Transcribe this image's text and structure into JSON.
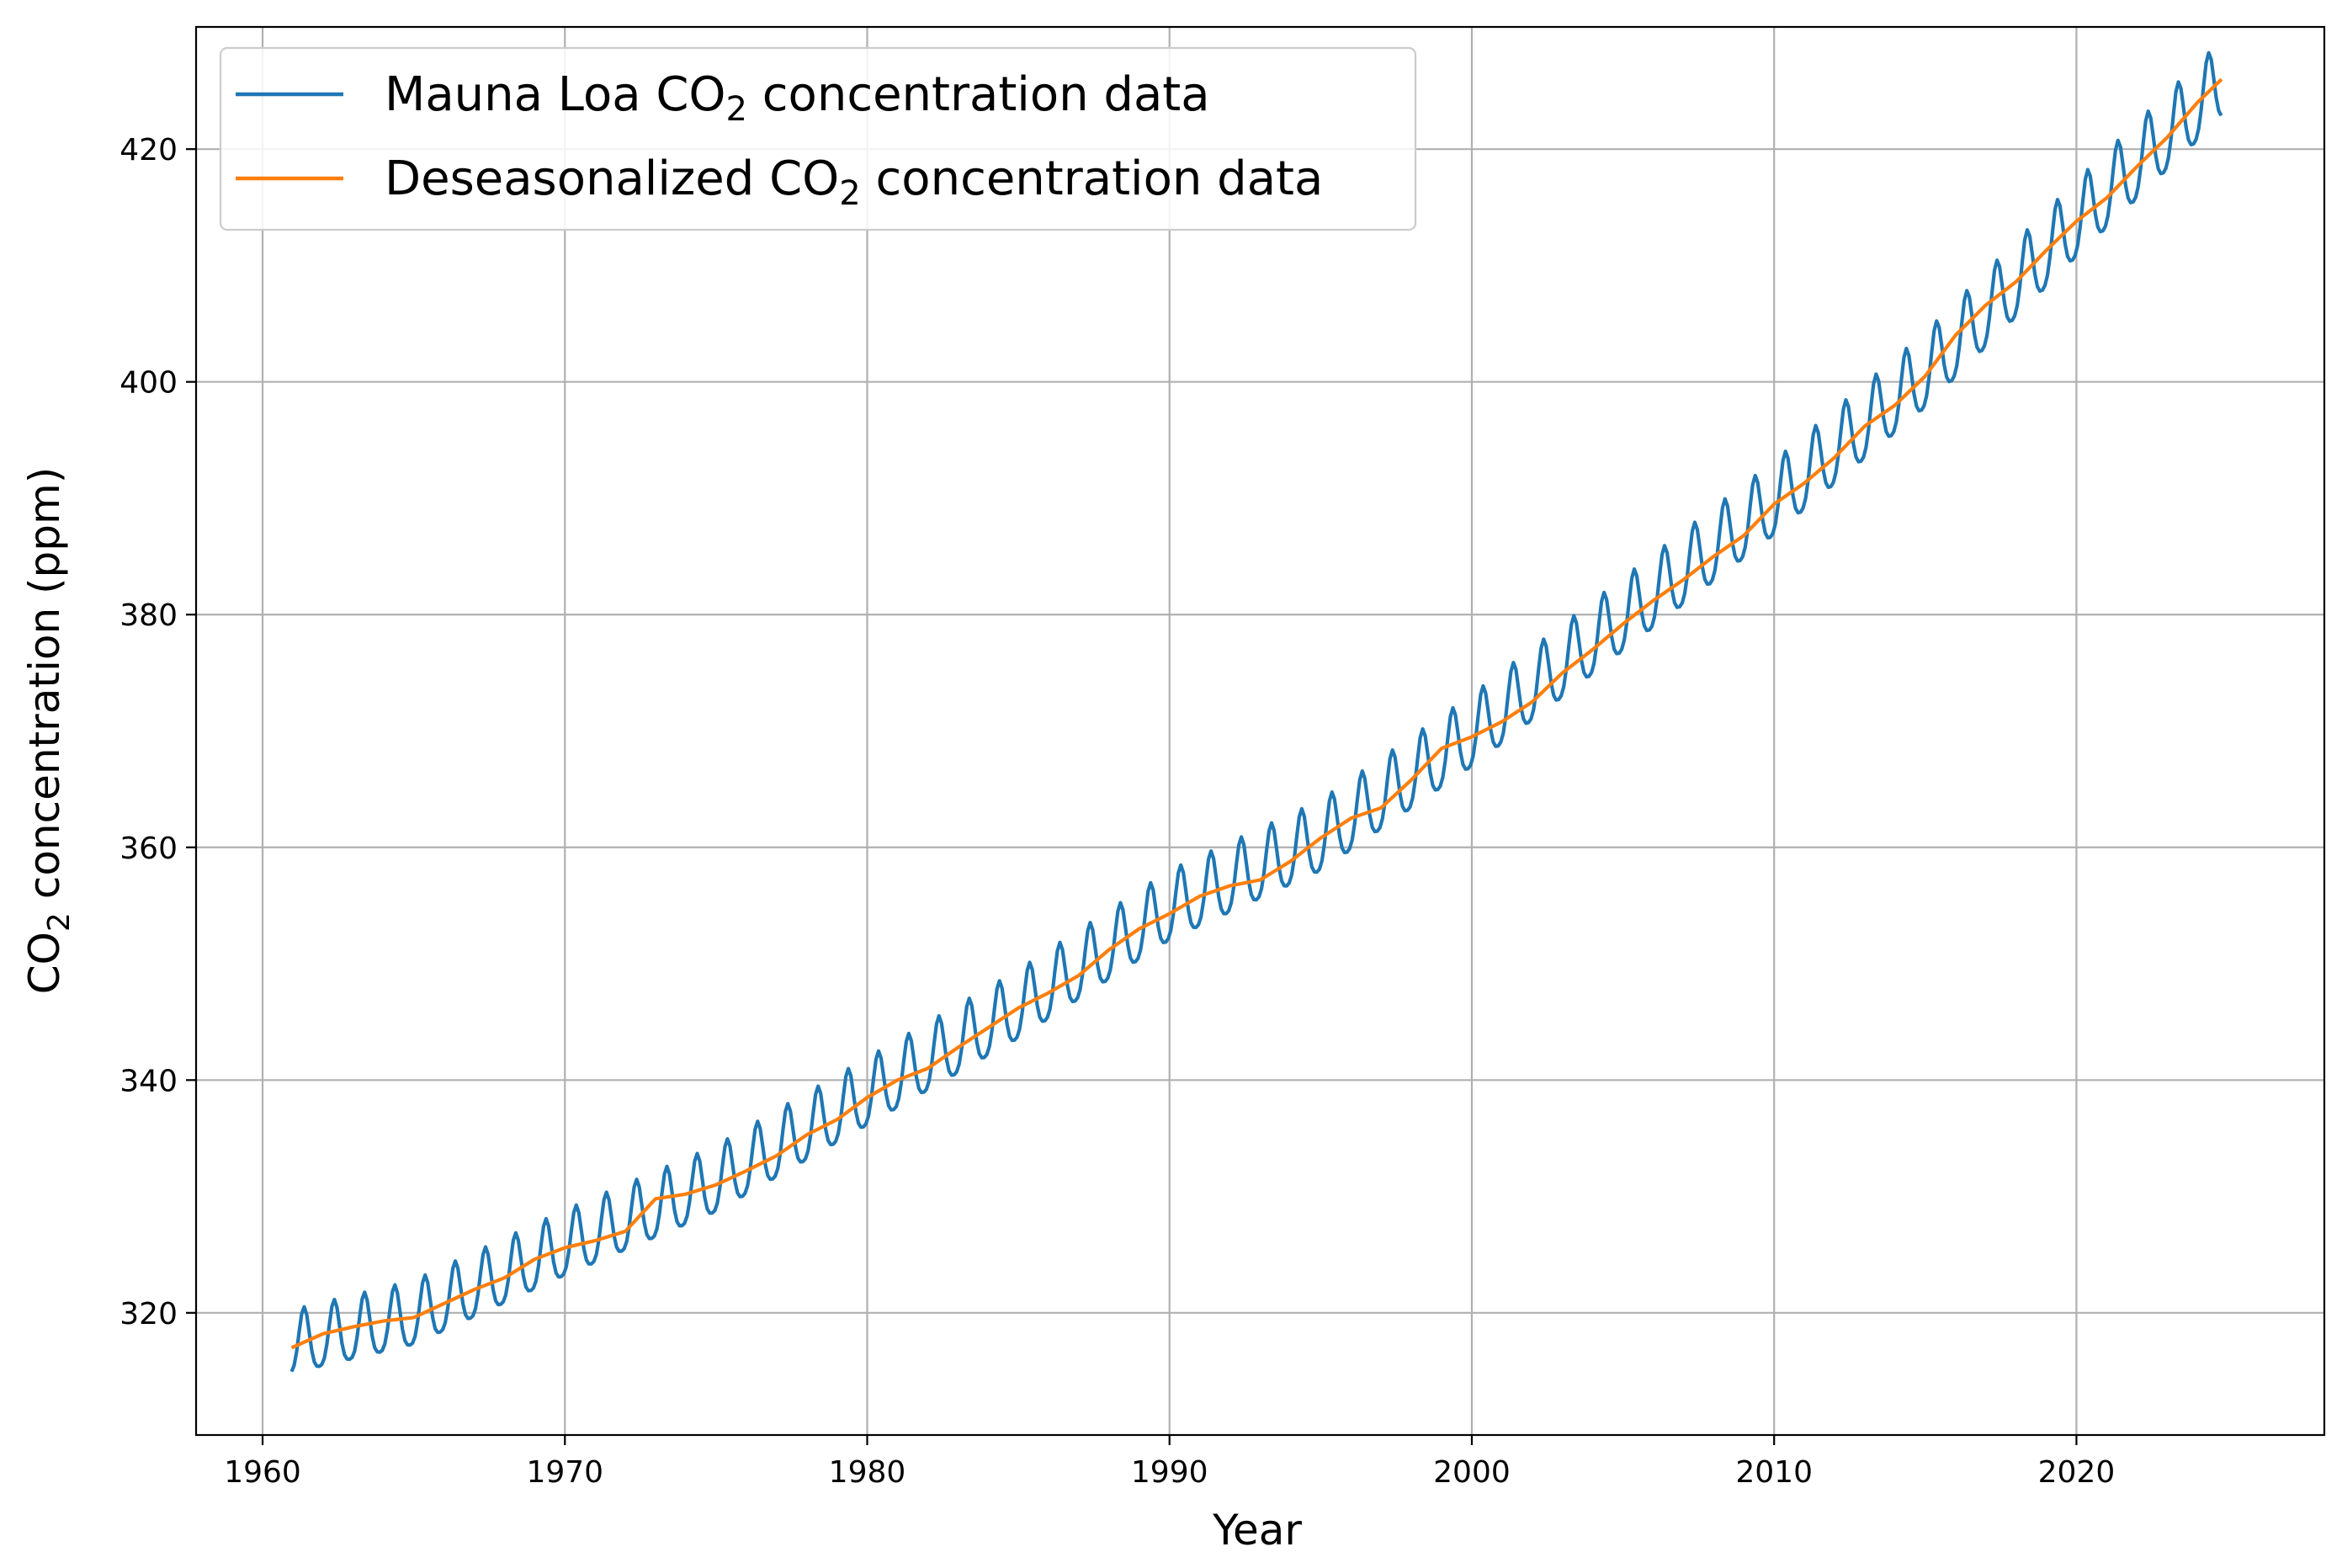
{
  "chart_data": {
    "type": "line",
    "xlabel": "Year",
    "ylabel_main": "CO",
    "ylabel_sub": "2",
    "ylabel_rest": " concentration (ppm)",
    "xlim": [
      1957.8,
      2028.2
    ],
    "ylim": [
      309.5,
      430.5
    ],
    "x_ticks": [
      1960,
      1970,
      1980,
      1990,
      2000,
      2010,
      2020
    ],
    "y_ticks": [
      320,
      340,
      360,
      380,
      400,
      420
    ],
    "grid": true,
    "legend_position": "top-left",
    "series": [
      {
        "name_main": "Mauna Loa CO",
        "name_sub": "2",
        "name_rest": " concentration data",
        "color": "#1f77b4",
        "x_start": 1960.96,
        "x_step": 0.08333,
        "count": 767,
        "trend_points": [
          [
            1960.96,
            317.0
          ],
          [
            1965,
            319.5
          ],
          [
            1970,
            325.5
          ],
          [
            1975,
            331.0
          ],
          [
            1980,
            338.5
          ],
          [
            1985,
            346.0
          ],
          [
            1990,
            354.5
          ],
          [
            1995,
            360.5
          ],
          [
            2000,
            369.5
          ],
          [
            2005,
            379.5
          ],
          [
            2010,
            389.5
          ],
          [
            2015,
            400.5
          ],
          [
            2020,
            413.5
          ],
          [
            2024.8,
            425.5
          ]
        ],
        "seasonal_amplitude": 3.0
      },
      {
        "name_main": "Deseasonalized CO",
        "name_sub": "2",
        "name_rest": " concentration data",
        "color": "#ff7f0e",
        "points": [
          [
            1960.96,
            317.0
          ],
          [
            1962,
            318.2
          ],
          [
            1963,
            318.8
          ],
          [
            1964,
            319.3
          ],
          [
            1965,
            319.6
          ],
          [
            1966,
            320.8
          ],
          [
            1967,
            322.0
          ],
          [
            1968,
            323.0
          ],
          [
            1969,
            324.6
          ],
          [
            1970,
            325.6
          ],
          [
            1971,
            326.2
          ],
          [
            1972,
            327.0
          ],
          [
            1973,
            329.8
          ],
          [
            1974,
            330.2
          ],
          [
            1975,
            331.0
          ],
          [
            1976,
            332.2
          ],
          [
            1977,
            333.5
          ],
          [
            1978,
            335.3
          ],
          [
            1979,
            336.6
          ],
          [
            1980,
            338.5
          ],
          [
            1981,
            340.0
          ],
          [
            1982,
            341.0
          ],
          [
            1983,
            342.8
          ],
          [
            1984,
            344.5
          ],
          [
            1985,
            346.2
          ],
          [
            1986,
            347.5
          ],
          [
            1987,
            349.0
          ],
          [
            1988,
            351.2
          ],
          [
            1989,
            353.0
          ],
          [
            1990,
            354.3
          ],
          [
            1991,
            355.8
          ],
          [
            1992,
            356.7
          ],
          [
            1993,
            357.2
          ],
          [
            1994,
            358.8
          ],
          [
            1995,
            360.8
          ],
          [
            1996,
            362.5
          ],
          [
            1997,
            363.4
          ],
          [
            1998,
            365.8
          ],
          [
            1999,
            368.5
          ],
          [
            2000,
            369.5
          ],
          [
            2001,
            370.8
          ],
          [
            2002,
            372.5
          ],
          [
            2003,
            375.0
          ],
          [
            2004,
            377.0
          ],
          [
            2005,
            379.2
          ],
          [
            2006,
            381.2
          ],
          [
            2007,
            383.0
          ],
          [
            2008,
            385.0
          ],
          [
            2009,
            386.8
          ],
          [
            2010,
            389.5
          ],
          [
            2011,
            391.3
          ],
          [
            2012,
            393.5
          ],
          [
            2013,
            396.2
          ],
          [
            2014,
            398.0
          ],
          [
            2015,
            400.5
          ],
          [
            2016,
            404.0
          ],
          [
            2017,
            406.6
          ],
          [
            2018,
            408.6
          ],
          [
            2019,
            411.3
          ],
          [
            2020,
            413.8
          ],
          [
            2021,
            415.8
          ],
          [
            2022,
            418.5
          ],
          [
            2023,
            421.0
          ],
          [
            2024,
            424.0
          ],
          [
            2024.8,
            426.0
          ]
        ]
      }
    ]
  }
}
